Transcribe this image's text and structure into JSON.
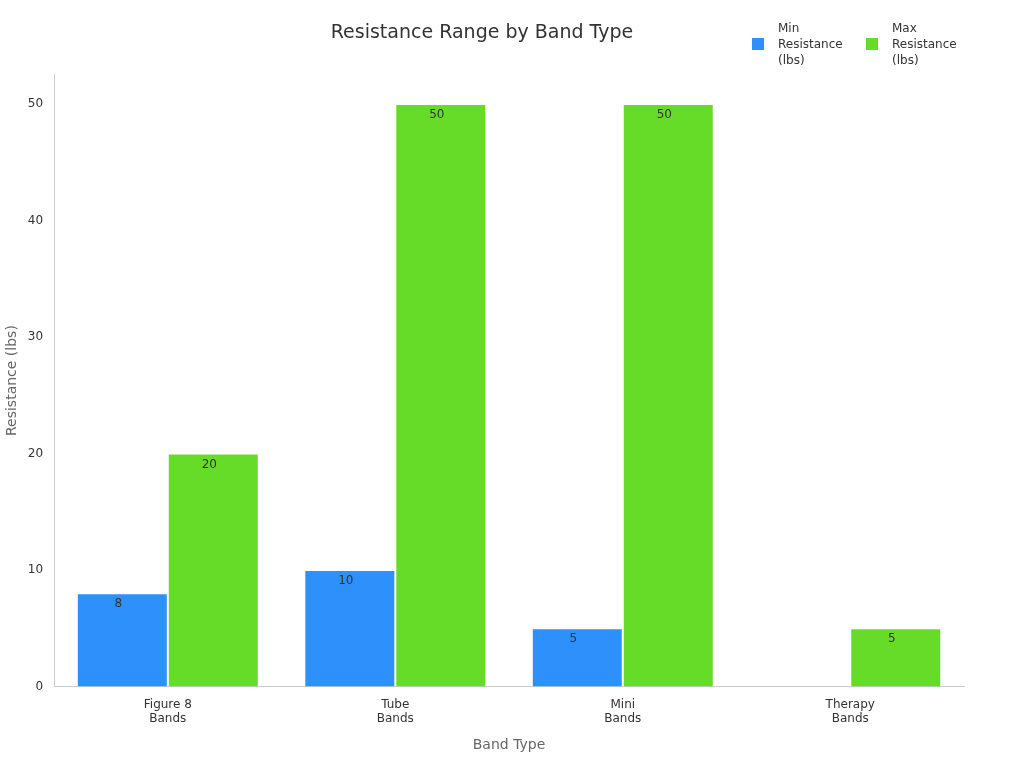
{
  "chart_data": {
    "type": "bar",
    "title": "Resistance Range by Band Type",
    "xlabel": "Band Type",
    "ylabel": "Resistance (lbs)",
    "categories": [
      "Figure 8 Bands",
      "Tube Bands",
      "Mini Bands",
      "Therapy Bands"
    ],
    "series": [
      {
        "name": "Min Resistance (lbs)",
        "color": "#2e90fa",
        "values": [
          8,
          10,
          5,
          null
        ]
      },
      {
        "name": "Max Resistance (lbs)",
        "color": "#66db28",
        "values": [
          20,
          50,
          50,
          5
        ]
      }
    ],
    "ylim": [
      0,
      52.5
    ],
    "yticks": [
      0,
      10,
      20,
      30,
      40,
      50
    ],
    "grid": false,
    "legend": "top right",
    "data_labels": true
  }
}
